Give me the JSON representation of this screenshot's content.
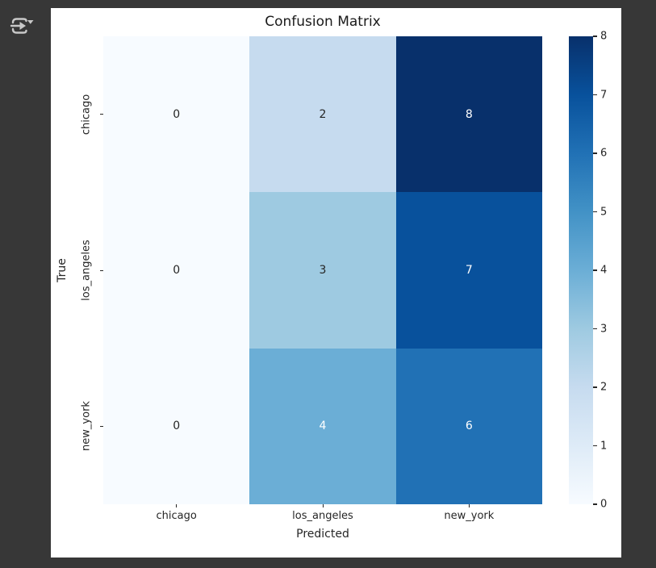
{
  "frame": {
    "background_color": "#373737",
    "figure_background_color": "#ffffff"
  },
  "output_toolbar": {
    "presentation_icon": "arrow-into-bracket-with-dropdown",
    "icon_color": "#c8c8c8"
  },
  "chart_data": {
    "type": "heatmap",
    "title": "Confusion Matrix",
    "xlabel": "Predicted",
    "ylabel": "True",
    "x_categories": [
      "chicago",
      "los_angeles",
      "new_york"
    ],
    "y_categories": [
      "chicago",
      "los_angeles",
      "new_york"
    ],
    "values": [
      [
        0,
        2,
        8
      ],
      [
        0,
        3,
        7
      ],
      [
        0,
        4,
        6
      ]
    ],
    "vmin": 0,
    "vmax": 8,
    "colormap": "Blues",
    "grid": false,
    "legend": "colorbar-right",
    "colorbar_ticks": [
      0,
      1,
      2,
      3,
      4,
      5,
      6,
      7,
      8
    ],
    "colormap_stops": [
      "#f7fbff",
      "#deebf7",
      "#c6dbef",
      "#9ecae1",
      "#6baed6",
      "#4292c6",
      "#2171b5",
      "#08519c",
      "#08306b"
    ],
    "cell_colors": [
      [
        "#f7fbff",
        "#c6dbef",
        "#08306b"
      ],
      [
        "#f7fbff",
        "#9ecae1",
        "#08519c"
      ],
      [
        "#f7fbff",
        "#6baed6",
        "#2171b5"
      ]
    ],
    "annotation_colors": [
      [
        "#262626",
        "#262626",
        "#ffffff"
      ],
      [
        "#262626",
        "#262626",
        "#ffffff"
      ],
      [
        "#262626",
        "#ffffff",
        "#ffffff"
      ]
    ],
    "tick_color": "#262626",
    "text_color": "#262626"
  }
}
